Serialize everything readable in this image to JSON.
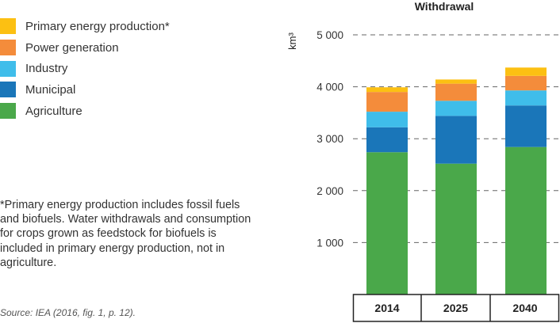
{
  "chart_data": {
    "type": "bar",
    "stacked": true,
    "title": "Withdrawal",
    "ylabel": "km³",
    "ylim": [
      0,
      5000
    ],
    "yticks": [
      1000,
      2000,
      3000,
      4000,
      5000
    ],
    "ytick_labels": [
      "1 000",
      "2 000",
      "3 000",
      "4 000",
      "5 000"
    ],
    "grid": true,
    "categories": [
      "2014",
      "2025",
      "2040"
    ],
    "series": [
      {
        "name": "Agriculture",
        "color": "#4aa84a",
        "values": [
          2740,
          2520,
          2840
        ]
      },
      {
        "name": "Municipal",
        "color": "#1a76b9",
        "values": [
          480,
          920,
          800
        ]
      },
      {
        "name": "Industry",
        "color": "#3fbdea",
        "values": [
          300,
          290,
          290
        ]
      },
      {
        "name": "Power generation",
        "color": "#f48c3b",
        "values": [
          380,
          330,
          280
        ]
      },
      {
        "name": "Primary energy production*",
        "color": "#fcc012",
        "values": [
          90,
          80,
          160
        ]
      }
    ]
  },
  "legend": [
    {
      "label": "Primary energy production*",
      "color": "#fcc012"
    },
    {
      "label": "Power generation",
      "color": "#f48c3b"
    },
    {
      "label": "Industry",
      "color": "#3fbdea"
    },
    {
      "label": "Municipal",
      "color": "#1a76b9"
    },
    {
      "label": "Agriculture",
      "color": "#4aa84a"
    }
  ],
  "footnote": "*Primary energy production includes fossil fuels and biofuels. Water withdrawals and consumption for crops grown as feedstock for biofuels is included in primary energy production, not in agriculture.",
  "source": "Source: IEA (2016, fig. 1, p. 12)."
}
